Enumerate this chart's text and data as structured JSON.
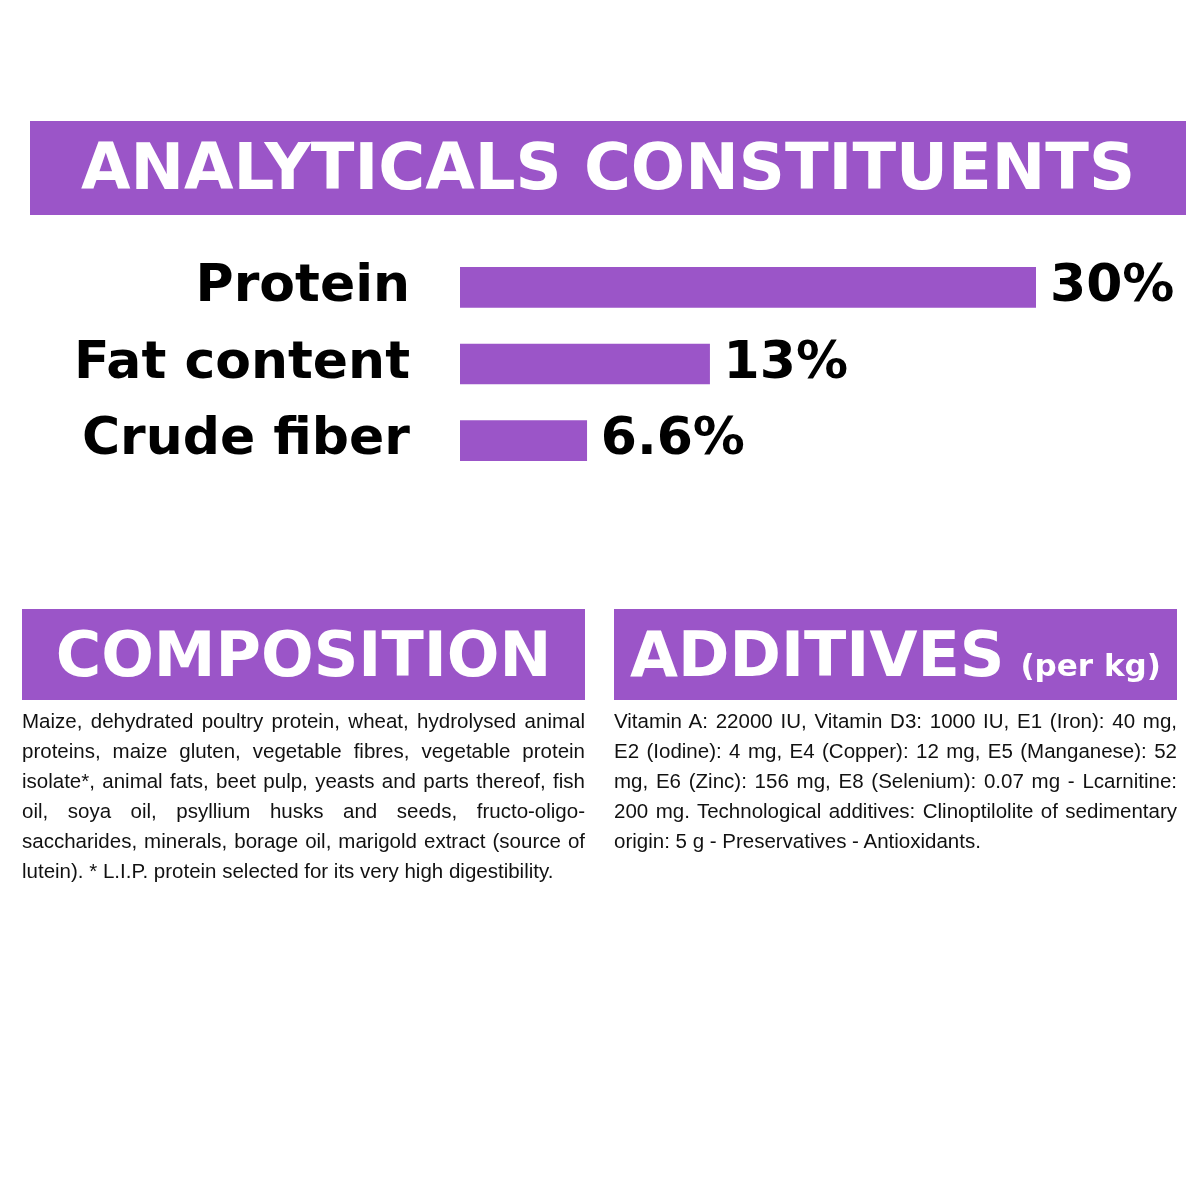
{
  "chart_data": [
    {
      "type": "bar",
      "orientation": "horizontal",
      "title": "ANALYTICALS CONSTITUENTS",
      "categories": [
        "Protein",
        "Fat content",
        "Crude fiber"
      ],
      "values": [
        30,
        13,
        6.6
      ],
      "value_labels": [
        "30%",
        "13%",
        "6.6%"
      ],
      "color": "#9b55c8",
      "tick_labels": "y",
      "grid": false
    },
    {
      "type": "other",
      "title": "COMPOSITION",
      "annotations": [
        "Maize, dehydrated poultry protein, wheat, hydrolysed animal proteins, maize gluten, vegetable fibres, vegetable protein isolate*, animal fats, beet pulp, yeasts and parts thereof, fish oil, soya oil, psyllium husks and seeds, fructo-oligo-saccharides, minerals, borage oil, marigold extract (source of lutein). * L.I.P. protein selected for its very high digestibility."
      ]
    },
    {
      "type": "other",
      "title": "ADDITIVES",
      "subtitle": "(per kg)",
      "annotations": [
        "Vitamin A: 22000 IU, Vitamin D3: 1000 IU, E1 (Iron): 40 mg, E2 (Iodine): 4 mg, E4 (Copper): 12 mg, E5 (Manganese): 52 mg, E6 (Zinc): 156 mg, E8 (Selenium): 0.07 mg - Lcarnitine: 200 mg. Technological additives: Clinoptilolite of sedimentary origin: 5 g - Preservatives - Antioxidants."
      ]
    }
  ]
}
